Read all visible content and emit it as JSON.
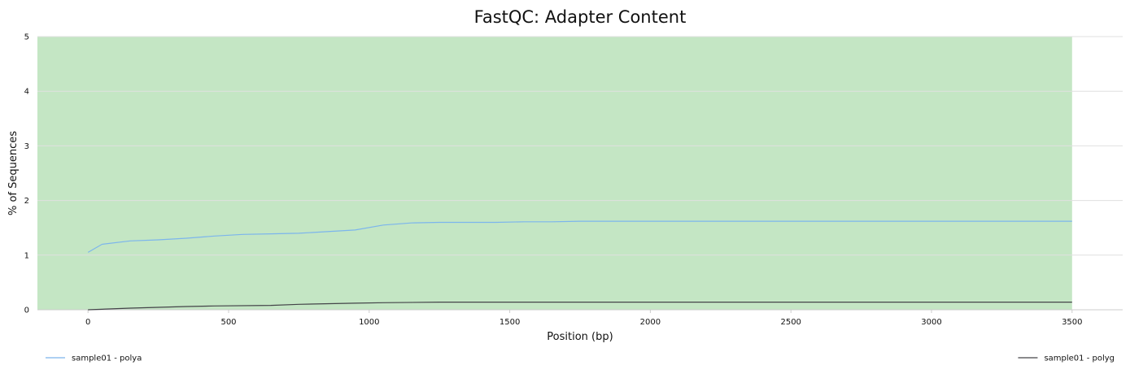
{
  "chart_data": {
    "type": "line",
    "title": "FastQC: Adapter Content",
    "xlabel": "Position (bp)",
    "ylabel": "% of Sequences",
    "xlim": [
      -180,
      3680
    ],
    "ylim": [
      0,
      5
    ],
    "x_ticks": [
      "0",
      "500",
      "1000",
      "1500",
      "2000",
      "2500",
      "3000",
      "3500"
    ],
    "y_ticks": [
      "0",
      "1",
      "2",
      "3",
      "4",
      "5"
    ],
    "grid": true,
    "background_band": {
      "from": -180,
      "to": 3500,
      "color": "#c4e6c4"
    },
    "legend_placement": "bottom",
    "series": [
      {
        "name": "sample01 - polya",
        "color": "#7cb5ec",
        "x": [
          0,
          50,
          150,
          250,
          350,
          450,
          550,
          650,
          750,
          850,
          950,
          1050,
          1150,
          1250,
          1350,
          1450,
          1550,
          1650,
          1750,
          1850,
          2000,
          2500,
          3000,
          3500
        ],
        "y": [
          1.05,
          1.2,
          1.26,
          1.28,
          1.31,
          1.35,
          1.38,
          1.39,
          1.4,
          1.43,
          1.46,
          1.55,
          1.59,
          1.6,
          1.6,
          1.6,
          1.61,
          1.61,
          1.62,
          1.62,
          1.62,
          1.62,
          1.62,
          1.62
        ]
      },
      {
        "name": "sample01 - polyg",
        "color": "#434348",
        "x": [
          0,
          150,
          350,
          450,
          650,
          750,
          950,
          1050,
          1250,
          1500,
          2000,
          2500,
          3000,
          3500
        ],
        "y": [
          0.0,
          0.03,
          0.06,
          0.07,
          0.08,
          0.1,
          0.12,
          0.13,
          0.14,
          0.14,
          0.14,
          0.14,
          0.14,
          0.14
        ]
      }
    ]
  }
}
